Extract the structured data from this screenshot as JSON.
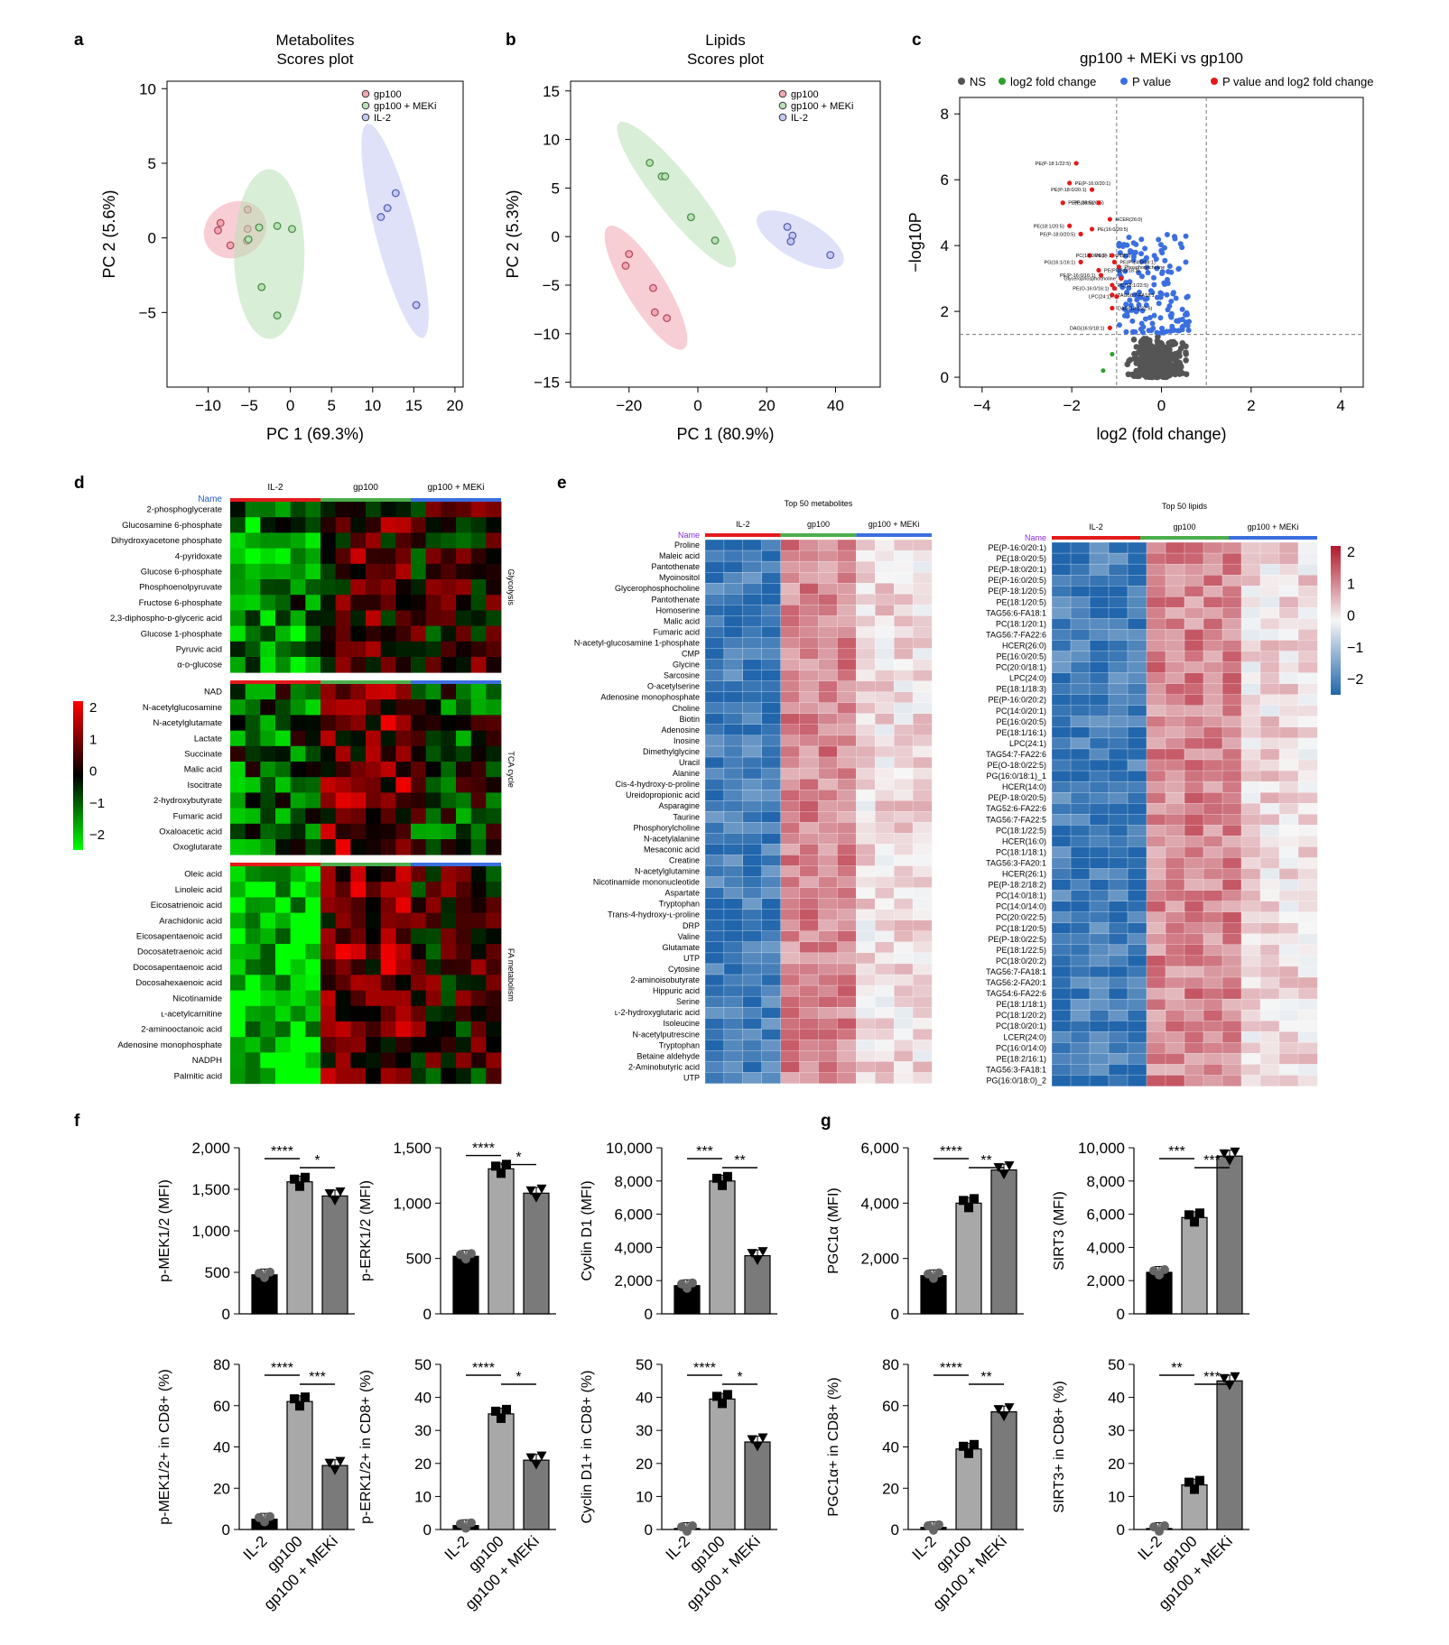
{
  "figure": {
    "panel_letters": [
      "a",
      "b",
      "c",
      "d",
      "e",
      "f",
      "g"
    ]
  },
  "colors": {
    "gp100": "#f3a6b3",
    "meki": "#b9e0b6",
    "il2": "#c4c9f4",
    "ns": "#555555",
    "fc": "#2ca02c",
    "pval": "#3b6fe0",
    "both": "#e41a1c"
  },
  "chart_data": [
    {
      "panel": "a",
      "type": "scatter",
      "title": "Metabolites Scores plot",
      "xlabel": "PC 1 (69.3%)",
      "ylabel": "PC 2 (5.6%)",
      "xlim": [
        -15,
        21
      ],
      "ylim": [
        -10,
        10.5
      ],
      "xticks": [
        -10,
        -5,
        0,
        5,
        10,
        15,
        20
      ],
      "yticks": [
        -5,
        0,
        5,
        10
      ],
      "legend": [
        "gp100",
        "gp100 + MEKi",
        "IL-2"
      ],
      "legend_placement": "top-right",
      "series": [
        {
          "name": "gp100",
          "points": [
            [
              -8.5,
              1
            ],
            [
              -8.8,
              0.5
            ],
            [
              -5.2,
              1.9
            ],
            [
              -5.2,
              0.6
            ],
            [
              -7.3,
              -0.5
            ],
            [
              -5.3,
              -0.2
            ]
          ]
        },
        {
          "name": "gp100 + MEKi",
          "points": [
            [
              -3.8,
              0.7
            ],
            [
              -1.6,
              0.8
            ],
            [
              0.2,
              0.6
            ],
            [
              -3.5,
              -3.3
            ],
            [
              -1.6,
              -5.2
            ],
            [
              -5.1,
              -0.1
            ]
          ]
        },
        {
          "name": "IL-2",
          "points": [
            [
              12.8,
              3
            ],
            [
              11.8,
              2
            ],
            [
              11,
              1.4
            ],
            [
              15.3,
              -4.5
            ]
          ]
        }
      ]
    },
    {
      "panel": "b",
      "type": "scatter",
      "title": "Lipids Scores plot",
      "xlabel": "PC 1 (80.9%)",
      "ylabel": "PC 2 (5.3%)",
      "xlim": [
        -37,
        53
      ],
      "ylim": [
        -15.5,
        16
      ],
      "xticks": [
        -20,
        0,
        20,
        40
      ],
      "yticks": [
        -15,
        -10,
        -5,
        0,
        5,
        10,
        15
      ],
      "legend": [
        "gp100",
        "gp100 + MEKi",
        "IL-2"
      ],
      "legend_placement": "top-right",
      "series": [
        {
          "name": "gp100",
          "points": [
            [
              -20,
              -1.8
            ],
            [
              -21,
              -3
            ],
            [
              -13,
              -5.3
            ],
            [
              -12.5,
              -7.8
            ],
            [
              -9,
              -8.4
            ]
          ]
        },
        {
          "name": "gp100 + MEKi",
          "points": [
            [
              -14,
              7.6
            ],
            [
              -10.5,
              6.2
            ],
            [
              -9.5,
              6.2
            ],
            [
              -2,
              2
            ],
            [
              5,
              -0.4
            ]
          ]
        },
        {
          "name": "IL-2",
          "points": [
            [
              26,
              1
            ],
            [
              27.5,
              0.1
            ],
            [
              27,
              -0.5
            ],
            [
              38.5,
              -1.9
            ]
          ]
        }
      ]
    },
    {
      "panel": "c",
      "type": "scatter",
      "title": "gp100 + MEKi vs gp100",
      "xlabel": "log2 (fold change)",
      "ylabel": "−log10P",
      "xlim": [
        -4.5,
        4.5
      ],
      "ylim": [
        -0.3,
        8.5
      ],
      "xticks": [
        -4,
        -2,
        0,
        2,
        4
      ],
      "yticks": [
        0,
        2,
        4,
        6,
        8
      ],
      "legend": [
        "NS",
        "log2 fold change",
        "P value",
        "P value and log2 fold change"
      ],
      "legend_placement": "top",
      "thresholds": {
        "x": [
          -1,
          1
        ],
        "y": 1.3
      },
      "labeled_points": [
        {
          "label": "PE(P-18:1/22:5)",
          "x": -1.9,
          "y": 6.5
        },
        {
          "label": "PE(P-16:0/20:1)",
          "x": -2.05,
          "y": 5.9
        },
        {
          "label": "PE(P-18:0/20:1)",
          "x": -1.55,
          "y": 5.7
        },
        {
          "label": "PE(P-16:0/20:5)",
          "x": -2.2,
          "y": 5.3
        },
        {
          "label": "PE(38:5)",
          "x": -1.4,
          "y": 5.3
        },
        {
          "label": "HCER(26:0)",
          "x": -1.15,
          "y": 4.8
        },
        {
          "label": "PE(18:1/20:5)",
          "x": -2.05,
          "y": 4.6
        },
        {
          "label": "PE(16:0/20:5)",
          "x": -1.55,
          "y": 4.5
        },
        {
          "label": "PE(P-18:0/20:5)",
          "x": -1.8,
          "y": 4.35
        },
        {
          "label": "PE(P-16:0/18:3)",
          "x": -1.6,
          "y": 3.7
        },
        {
          "label": "PC(18:0/20:1)",
          "x": -1.1,
          "y": 3.7
        },
        {
          "label": "PE(P-14:0/18:1)",
          "x": -1.05,
          "y": 3.5
        },
        {
          "label": "PG(16:1/16:1)",
          "x": -1.8,
          "y": 3.5
        },
        {
          "label": "Phosphorylcholine",
          "x": -0.95,
          "y": 3.35
        },
        {
          "label": "Glycerophosphocholine",
          "x": -0.9,
          "y": 3.0
        },
        {
          "label": "PE(P-18:0/18:3)",
          "x": -1.4,
          "y": 3.25
        },
        {
          "label": "PE(P-16:0/16:1)",
          "x": -1.35,
          "y": 3.1
        },
        {
          "label": "PC(18:1/22:5)",
          "x": -1.1,
          "y": 2.8
        },
        {
          "label": "PE(O-16:0/16:1)",
          "x": -1.05,
          "y": 2.7
        },
        {
          "label": "TAG58:7-FA18:1",
          "x": -1.1,
          "y": 2.5
        },
        {
          "label": "LPC(24:1)",
          "x": -1.0,
          "y": 2.45
        },
        {
          "label": "DAG(18:1/22:6)",
          "x": -1.1,
          "y": 2.1
        },
        {
          "label": "DAG(16:0/18:1)",
          "x": -1.15,
          "y": 1.5
        }
      ],
      "labels_display": [
        "PE(P-18:1/22:5)",
        "PE(P-16:0/20:1)",
        "PE(P-18:0/20:1)",
        "PE(P-16:0/20:5)",
        "PE(38:5)",
        "HCER(26:0)",
        "PE(18:1/20:5)",
        "PE(16:0/20:5)",
        "PE(P-18:0/20:5)",
        "PE(P-16:0/18:3)",
        "PC(18:0/20:1)",
        "PE(P-14:0/18:1)",
        "PG(16:1/16:1)",
        "Phosphorylcholine",
        "Glycerophosphocholine",
        "PE(P-18:0/18:3)",
        "PE(P-16:0/16:1)",
        "PC(18:1/22:5)",
        "PE(O-16:0/16:1)",
        "TAG58:7-FA18:1",
        "LPC(24:1)",
        "DAG(18:1/22:6)",
        "DAG(16:0/18:1)"
      ]
    },
    {
      "panel": "d",
      "type": "heatmap",
      "group_label": "Name",
      "columns_groups": [
        "IL-2",
        "gp100",
        "gp100 + MEKi"
      ],
      "scale": {
        "min": -2,
        "max": 2,
        "ticks": [
          2,
          1,
          0,
          -1,
          -2
        ],
        "low": "#00ff00",
        "mid": "#000000",
        "high": "#ff0000"
      },
      "blocks": [
        {
          "name": "Glycolysis",
          "rows": [
            "2-phosphoglycerate",
            "Glucosamine 6-phosphate",
            "Dihydroxyacetone phosphate",
            "4-pyridoxate",
            "Glucose 6-phosphate",
            "Phosphoenolpyruvate",
            "Fructose 6-phosphate",
            "2,3-diphospho-ᴅ-glyceric acid",
            "Glucose 1-phosphate",
            "Pyruvic acid",
            "α-ᴅ-glucose"
          ]
        },
        {
          "name": "TCA cycle",
          "rows": [
            "NAD",
            "N-acetylglucosamine",
            "N-acetylglutamate",
            "Lactate",
            "Succinate",
            "Malic acid",
            "Isocitrate",
            "2-hydroxybutyrate",
            "Fumaric acid",
            "Oxaloacetic acid",
            "Oxoglutarate"
          ]
        },
        {
          "name": "FA metabolism",
          "rows": [
            "Oleic acid",
            "Linoleic acid",
            "Eicosatrienoic acid",
            "Arachidonic acid",
            "Eicosapentaenoic acid",
            "Docosatetraenoic acid",
            "Docosapentaenoic acid",
            "Docosahexaenoic acid",
            "Nicotinamide",
            "ʟ-acetylcarnitine",
            "2-aminooctanoic acid",
            "Adenosine monophosphate",
            "NADPH",
            "Palmitic acid"
          ]
        }
      ]
    },
    {
      "panel": "e",
      "type": "heatmap",
      "scale": {
        "min": -2,
        "max": 2,
        "ticks": [
          2,
          1,
          0,
          -1,
          -2
        ]
      },
      "maps": [
        {
          "title": "Top 50 metabolites",
          "group_label": "Name",
          "columns_groups": [
            "IL-2",
            "gp100",
            "gp100 + MEKi"
          ],
          "rows": [
            "Proline",
            "Maleic acid",
            "Pantothenate",
            "Myoinositol",
            "Glycerophosphocholine",
            "Pantothenate",
            "Homoserine",
            "Malic acid",
            "Fumaric acid",
            "N-acetyl-glucosamine 1-phosphate",
            "CMP",
            "Glycine",
            "Sarcosine",
            "O-acetylserine",
            "Adenosine monophosphate",
            "Choline",
            "Biotin",
            "Adenosine",
            "Inosine",
            "Dimethylglycine",
            "Uracil",
            "Alanine",
            "Cis-4-hydroxy-ᴅ-proline",
            "Ureidopropionic acid",
            "Asparagine",
            "Taurine",
            "Phosphorylcholine",
            "N-acetylalanine",
            "Mesaconic acid",
            "Creatine",
            "N-acetylglutamine",
            "Nicotinamide mononucleotide",
            "Aspartate",
            "Tryptophan",
            "Trans-4-hydroxy-ʟ-proline",
            "DRP",
            "Valine",
            "Glutamate",
            "UTP",
            "Cytosine",
            "2-aminoisobutyrate",
            "Hippuric acid",
            "Serine",
            "ʟ-2-hydroxyglutaric acid",
            "Isoleucine",
            "N-acetylputrescine",
            "Tryptophan",
            "Betaine aldehyde",
            "2-Aminobutyric acid",
            "UTP"
          ]
        },
        {
          "title": "Top 50 lipids",
          "group_label": "Name",
          "columns_groups": [
            "IL-2",
            "gp100",
            "gp100 + MEKi"
          ],
          "rows": [
            "PE(P-16:0/20:1)",
            "PE(18:0/20:5)",
            "PE(P-18:0/20:1)",
            "PE(P-16:0/20:5)",
            "PE(P-18:1/20:5)",
            "PE(18:1/20:5)",
            "TAG56:6-FA18:1",
            "PC(18:1/20:1)",
            "TAG56:7-FA22:6",
            "HCER(26:0)",
            "PE(16:0/20:5)",
            "PC(20:0/18:1)",
            "LPC(24:0)",
            "PE(18:1/18:3)",
            "PE(P-16:0/20:2)",
            "PC(14:0/20:1)",
            "PE(16:0/20:5)",
            "PE(18:1/16:1)",
            "LPC(24:1)",
            "TAG54:7-FA22:6",
            "PE(O-18:0/22:5)",
            "PG(16:0/18:1)_1",
            "HCER(14:0)",
            "PE(P-18:0/20:5)",
            "TAG52:6-FA22:6",
            "TAG56:7-FA22:5",
            "PC(18:1/22:5)",
            "HCER(16:0)",
            "PC(18:1/18:1)",
            "TAG56:3-FA20:1",
            "HCER(26:1)",
            "PE(P-18:2/18:2)",
            "PC(14:0/18:1)",
            "PC(14:0/14:0)",
            "PC(20:0/22:5)",
            "PC(18:1/20:5)",
            "PE(P-18:0/22:5)",
            "PE(18:1/22:5)",
            "PC(18:0/20:2)",
            "TAG56:7-FA18:1",
            "TAG56:2-FA20:1",
            "TAG54:6-FA22:6",
            "PE(18:1/18:1)",
            "PC(18:1/20:2)",
            "PC(18:0/20:1)",
            "LCER(24:0)",
            "PC(16:0/14:0)",
            "PE(18:2/16:1)",
            "TAG56:3-FA18:1",
            "PG(16:0/18:0)_2"
          ]
        }
      ]
    },
    {
      "panel": "f",
      "type": "bar",
      "categories": [
        "IL-2",
        "gp100",
        "gp100 + MEKi"
      ],
      "subplots": [
        {
          "ylabel": "p-MEK1/2 (MFI)",
          "ylim": [
            0,
            2000
          ],
          "yticks": [
            "0",
            "500",
            "1,000",
            "1,500",
            "2,000"
          ],
          "values": [
            470,
            1590,
            1420
          ],
          "sig": [
            "****",
            "*"
          ]
        },
        {
          "ylabel": "p-ERK1/2 (MFI)",
          "ylim": [
            0,
            1500
          ],
          "yticks": [
            "0",
            "500",
            "1,000",
            "1,500"
          ],
          "values": [
            520,
            1310,
            1090
          ],
          "sig": [
            "****",
            "*"
          ]
        },
        {
          "ylabel": "Cyclin D1 (MFI)",
          "ylim": [
            0,
            10000
          ],
          "yticks": [
            "0",
            "2,000",
            "4,000",
            "6,000",
            "8,000",
            "10,000"
          ],
          "values": [
            1700,
            8000,
            3500
          ],
          "sig": [
            "***",
            "**"
          ]
        },
        {
          "ylabel": "p-MEK1/2+ in CD8+ (%)",
          "ylim": [
            0,
            80
          ],
          "yticks": [
            "0",
            "20",
            "40",
            "60",
            "80"
          ],
          "values": [
            5,
            62,
            31
          ],
          "sig": [
            "****",
            "***"
          ]
        },
        {
          "ylabel": "p-ERK1/2+ in CD8+ (%)",
          "ylim": [
            0,
            50
          ],
          "yticks": [
            "0",
            "10",
            "20",
            "30",
            "40",
            "50"
          ],
          "values": [
            1.2,
            35,
            21
          ],
          "sig": [
            "****",
            "*"
          ]
        },
        {
          "ylabel": "Cyclin D1+ in CD8+ (%)",
          "ylim": [
            0,
            50
          ],
          "yticks": [
            "0",
            "10",
            "20",
            "30",
            "40",
            "50"
          ],
          "values": [
            0.3,
            39.5,
            26.5
          ],
          "sig": [
            "****",
            "*"
          ]
        }
      ]
    },
    {
      "panel": "g",
      "type": "bar",
      "categories": [
        "IL-2",
        "gp100",
        "gp100 + MEKi"
      ],
      "subplots": [
        {
          "ylabel": "PGC1α (MFI)",
          "ylim": [
            0,
            6000
          ],
          "yticks": [
            "0",
            "2,000",
            "4,000",
            "6,000"
          ],
          "values": [
            1380,
            4000,
            5200
          ],
          "sig": [
            "****",
            "**"
          ]
        },
        {
          "ylabel": "SIRT3 (MFI)",
          "ylim": [
            0,
            10000
          ],
          "yticks": [
            "0",
            "2,000",
            "4,000",
            "6,000",
            "8,000",
            "10,000"
          ],
          "values": [
            2500,
            5800,
            9500
          ],
          "sig": [
            "***",
            "***"
          ]
        },
        {
          "ylabel": "PGC1α+ in CD8+ (%)",
          "ylim": [
            0,
            80
          ],
          "yticks": [
            "0",
            "20",
            "40",
            "60",
            "80"
          ],
          "values": [
            1,
            39,
            57
          ],
          "sig": [
            "****",
            "**"
          ]
        },
        {
          "ylabel": "SIRT3+ in CD8+ (%)",
          "ylim": [
            0,
            50
          ],
          "yticks": [
            "0",
            "10",
            "20",
            "30",
            "40",
            "50"
          ],
          "values": [
            0.3,
            13.5,
            45
          ],
          "sig": [
            "**",
            "***"
          ]
        }
      ]
    }
  ]
}
